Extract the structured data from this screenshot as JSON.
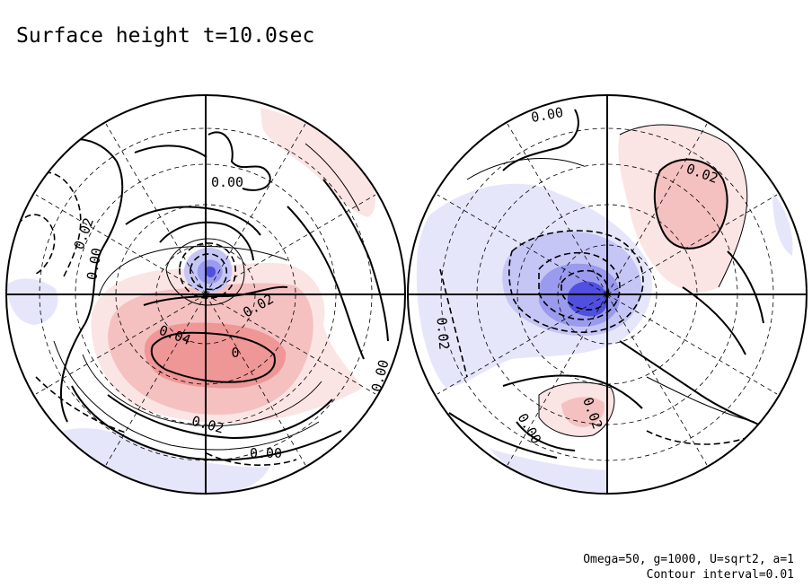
{
  "chart_data": {
    "type": "contour-map",
    "title": "Surface height t=10.0sec",
    "params_line": "Omega=50, g=1000, U=sqrt2, a=1",
    "contour_line": "Contour interval=0.01",
    "contour_interval": 0.01,
    "colors": {
      "positive_light": "#fbe4e4",
      "positive_mid": "#f5c0c0",
      "positive_strong": "#ef9696",
      "negative_light": "#e6e6fb",
      "negative_mid": "#c6c6f6",
      "negative_strong": "#9a9aee",
      "negative_core": "#5050e0"
    },
    "hemispheres": [
      {
        "name": "left",
        "labels": [
          "0.02",
          "0.00",
          "0.00",
          "0.02",
          "0.04",
          "0",
          "0.02",
          "0.00",
          "0.00"
        ]
      },
      {
        "name": "right",
        "labels": [
          "0.00",
          "0.02",
          "0.02",
          "0.02",
          "0.00"
        ]
      }
    ]
  }
}
